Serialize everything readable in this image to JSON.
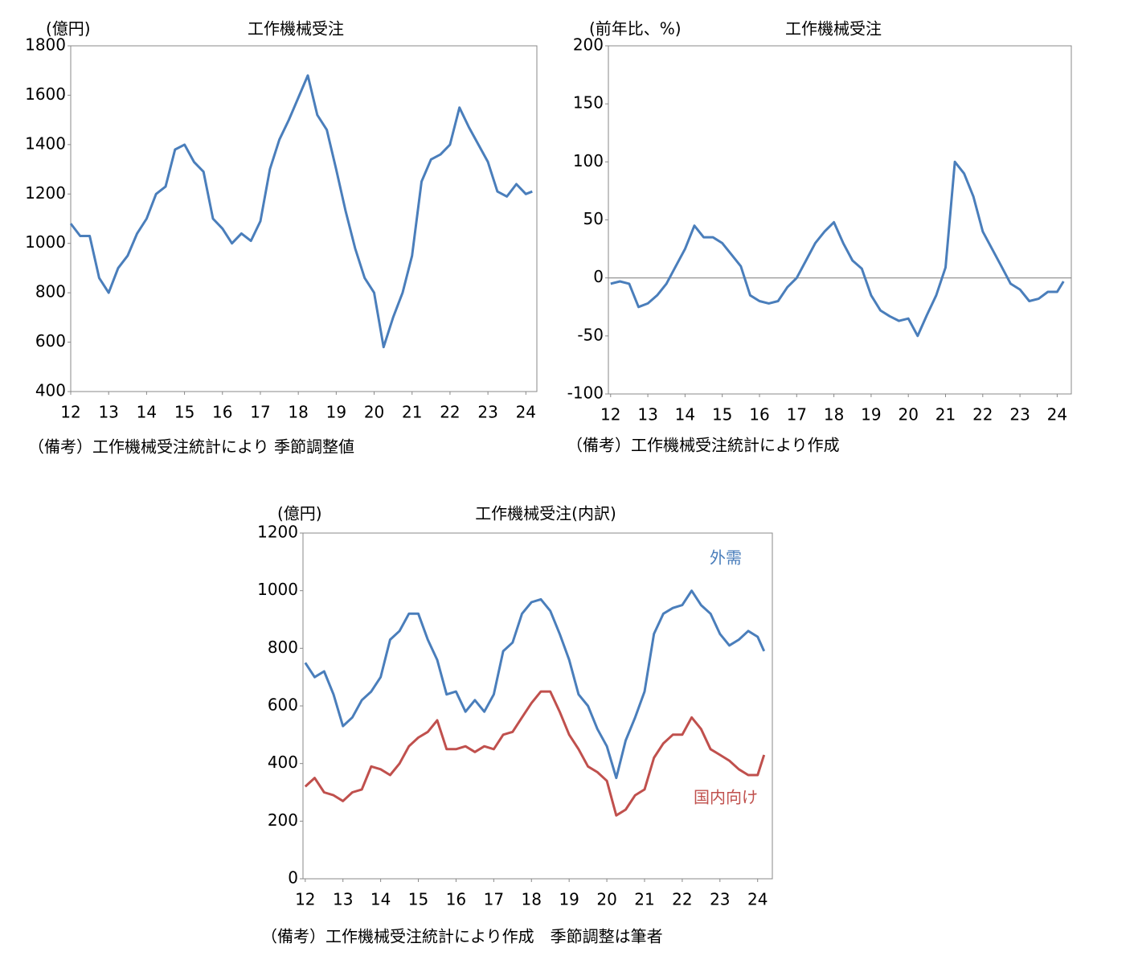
{
  "chart_data": [
    {
      "type": "line",
      "title": "工作機械受注",
      "y_label": "(億円)",
      "note": "（備考）工作機械受注統計により 季節調整値",
      "x": [
        12,
        12.25,
        12.5,
        12.75,
        13,
        13.25,
        13.5,
        13.75,
        14,
        14.25,
        14.5,
        14.75,
        15,
        15.25,
        15.5,
        15.75,
        16,
        16.25,
        16.5,
        16.75,
        17,
        17.25,
        17.5,
        17.75,
        18,
        18.25,
        18.5,
        18.75,
        19,
        19.25,
        19.5,
        19.75,
        20,
        20.25,
        20.5,
        20.75,
        21,
        21.25,
        21.5,
        21.75,
        22,
        22.25,
        22.5,
        22.75,
        23,
        23.25,
        23.5,
        23.75,
        24,
        24.17
      ],
      "series": [
        {
          "color": "#4a7ebb",
          "values": [
            1080,
            1030,
            1030,
            860,
            800,
            900,
            950,
            1040,
            1100,
            1200,
            1230,
            1380,
            1400,
            1330,
            1290,
            1100,
            1060,
            1000,
            1040,
            1010,
            1090,
            1300,
            1420,
            1500,
            1590,
            1680,
            1520,
            1460,
            1300,
            1130,
            980,
            860,
            800,
            580,
            700,
            800,
            950,
            1250,
            1340,
            1360,
            1400,
            1550,
            1470,
            1400,
            1330,
            1210,
            1190,
            1240,
            1200,
            1210
          ]
        }
      ],
      "xlim": [
        12,
        24.29
      ],
      "ylim": [
        400,
        1800
      ],
      "xticks": [
        12,
        13,
        14,
        15,
        16,
        17,
        18,
        19,
        20,
        21,
        22,
        23,
        24
      ],
      "yticks": [
        400,
        600,
        800,
        1000,
        1200,
        1400,
        1600,
        1800
      ]
    },
    {
      "type": "line",
      "title": "工作機械受注",
      "y_label": "(前年比、%)",
      "note": "（備考）工作機械受注統計により作成",
      "zero_line": true,
      "x": [
        12,
        12.25,
        12.5,
        12.75,
        13,
        13.25,
        13.5,
        13.75,
        14,
        14.25,
        14.5,
        14.75,
        15,
        15.25,
        15.5,
        15.75,
        16,
        16.25,
        16.5,
        16.75,
        17,
        17.25,
        17.5,
        17.75,
        18,
        18.25,
        18.5,
        18.75,
        19,
        19.25,
        19.5,
        19.75,
        20,
        20.25,
        20.5,
        20.75,
        21,
        21.25,
        21.5,
        21.75,
        22,
        22.25,
        22.5,
        22.75,
        23,
        23.25,
        23.5,
        23.75,
        24,
        24.17
      ],
      "series": [
        {
          "color": "#4a7ebb",
          "values": [
            -5,
            -3,
            -5,
            -25,
            -22,
            -15,
            -5,
            10,
            25,
            45,
            35,
            35,
            30,
            20,
            10,
            -15,
            -20,
            -22,
            -20,
            -8,
            0,
            15,
            30,
            40,
            48,
            30,
            15,
            8,
            -15,
            -28,
            -33,
            -37,
            -35,
            -50,
            -32,
            -15,
            9,
            100,
            90,
            70,
            40,
            25,
            10,
            -5,
            -10,
            -20,
            -18,
            -12,
            -12,
            -3
          ]
        }
      ],
      "xlim": [
        11.94,
        24.38
      ],
      "ylim": [
        -100,
        200
      ],
      "xticks": [
        12,
        13,
        14,
        15,
        16,
        17,
        18,
        19,
        20,
        21,
        22,
        23,
        24
      ],
      "yticks": [
        -100,
        -50,
        0,
        50,
        100,
        150,
        200
      ]
    },
    {
      "type": "line",
      "title": "工作機械受注(内訳)",
      "y_label": "(億円)",
      "note": "（備考）工作機械受注統計により作成　季節調整は筆者",
      "x": [
        12,
        12.25,
        12.5,
        12.75,
        13,
        13.25,
        13.5,
        13.75,
        14,
        14.25,
        14.5,
        14.75,
        15,
        15.25,
        15.5,
        15.75,
        16,
        16.25,
        16.5,
        16.75,
        17,
        17.25,
        17.5,
        17.75,
        18,
        18.25,
        18.5,
        18.75,
        19,
        19.25,
        19.5,
        19.75,
        20,
        20.25,
        20.5,
        20.75,
        21,
        21.25,
        21.5,
        21.75,
        22,
        22.25,
        22.5,
        22.75,
        23,
        23.25,
        23.5,
        23.75,
        24,
        24.17
      ],
      "series": [
        {
          "name": "外需",
          "color": "#4a7ebb",
          "values": [
            750,
            700,
            720,
            640,
            530,
            560,
            620,
            650,
            700,
            830,
            860,
            920,
            920,
            830,
            760,
            640,
            650,
            580,
            620,
            580,
            640,
            790,
            820,
            920,
            960,
            970,
            930,
            850,
            760,
            640,
            600,
            520,
            460,
            350,
            480,
            560,
            650,
            850,
            920,
            940,
            950,
            1000,
            950,
            920,
            850,
            810,
            830,
            860,
            840,
            790
          ]
        },
        {
          "name": "国内向け",
          "color": "#c0504d",
          "values": [
            320,
            350,
            300,
            290,
            270,
            300,
            310,
            390,
            380,
            360,
            400,
            460,
            490,
            510,
            550,
            450,
            450,
            460,
            440,
            460,
            450,
            500,
            510,
            560,
            610,
            650,
            650,
            580,
            500,
            450,
            390,
            370,
            340,
            220,
            240,
            290,
            310,
            420,
            470,
            500,
            500,
            560,
            520,
            450,
            430,
            410,
            380,
            360,
            360,
            430
          ]
        }
      ],
      "xlim": [
        11.94,
        24.39
      ],
      "ylim": [
        0,
        1200
      ],
      "xticks": [
        12,
        13,
        14,
        15,
        16,
        17,
        18,
        19,
        20,
        21,
        22,
        23,
        24
      ],
      "yticks": [
        0,
        200,
        400,
        600,
        800,
        1000,
        1200
      ]
    }
  ]
}
